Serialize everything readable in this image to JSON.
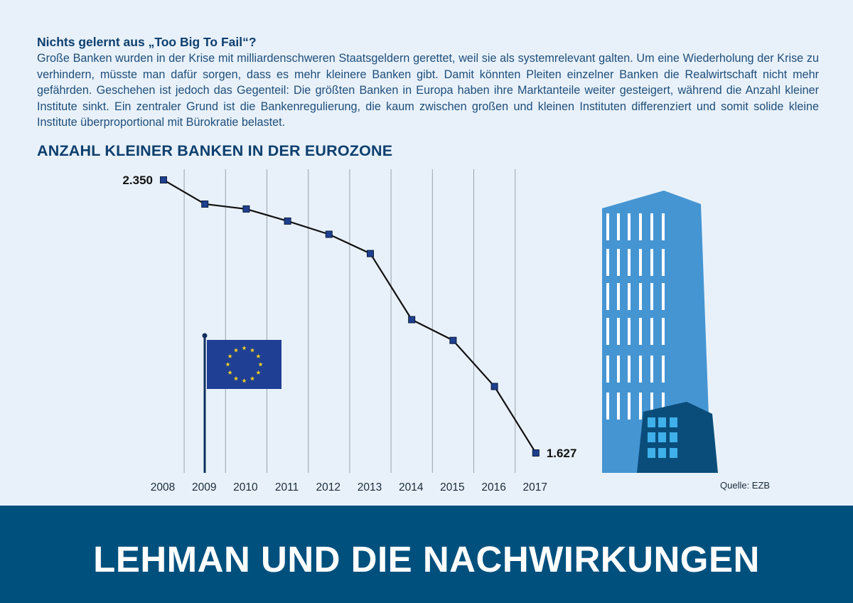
{
  "intro": {
    "title": "Nichts gelernt aus „Too Big To Fail“?",
    "text": "Große Banken wurden in der Krise mit milliardenschweren Staatsgeldern gerettet, weil sie als systemrelevant galten. Um eine Wiederholung der Krise zu verhindern, müsste man dafür sorgen, dass es mehr kleinere Banken gibt. Damit könnten Pleiten einzelner Banken die Realwirtschaft nicht mehr gefährden. Geschehen ist jedoch das Gegenteil: Die größten Banken in Europa haben ihre Marktanteile weiter gesteigert, während die Anzahl kleiner Institute sinkt. Ein zentraler Grund ist die Bankenregulierung, die kaum zwischen großen und kleinen Instituten differenziert und somit solide kleine Institute überproportional mit Bürokratie belastet."
  },
  "chart_data": {
    "type": "line",
    "title": "ANZAHL KLEINER BANKEN IN DER EUROZONE",
    "xlabel": "",
    "ylabel": "",
    "x": [
      "2008",
      "2009",
      "2010",
      "2011",
      "2012",
      "2013",
      "2014",
      "2015",
      "2016",
      "2017"
    ],
    "values": [
      2350,
      2286,
      2273,
      2241,
      2206,
      2155,
      1980,
      1925,
      1803,
      1627
    ],
    "data_labels": {
      "first": "2.350",
      "last": "1.627"
    },
    "ylim": [
      1580,
      2370
    ],
    "grid": "vertical",
    "colors": {
      "line": "#111111",
      "marker": "#1f3f8f",
      "grid": "#9aa3ab"
    }
  },
  "source": "Quelle: EZB",
  "banner": {
    "title": "LEHMAN UND DIE NACHWIRKUNGEN"
  },
  "illustrations": {
    "flag": {
      "icon": "eu-flag-icon",
      "color": "#1f3f95",
      "star_color": "#f2d21b"
    },
    "building": {
      "icon": "bank-building-icon",
      "tower_color": "#4595d3",
      "base_color": "#0a4d7a",
      "window_color": "#3fb0ea"
    }
  }
}
